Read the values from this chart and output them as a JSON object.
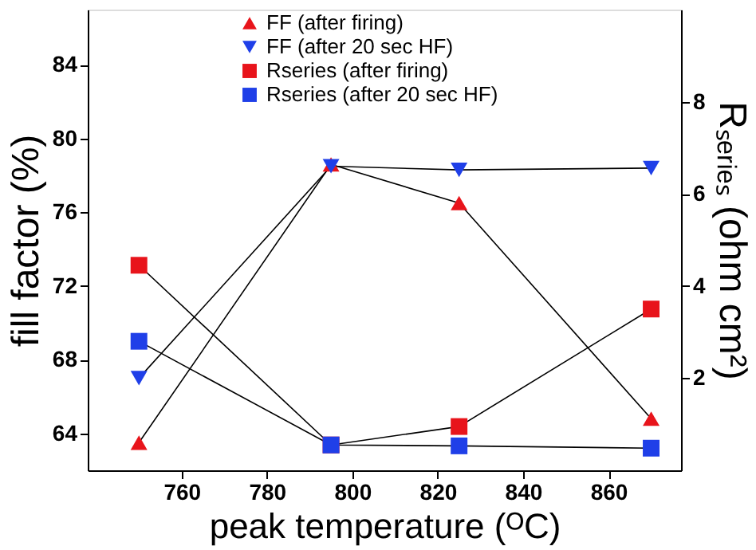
{
  "chart_data": {
    "type": "line",
    "xlabel": "peak temperature (ᴼC)",
    "ylabel": "fill factor (%)",
    "y2label": "Rₛₑᵣᵢₑₛ (ohm cm²)",
    "x": [
      750,
      795,
      825,
      870
    ],
    "series": [
      {
        "name": "FF (after firing)",
        "color": "#e8141b",
        "marker": "triangle",
        "values": [
          63.5,
          78.6,
          76.5,
          64.8
        ]
      },
      {
        "name": "FF (after 20 sec HF)",
        "color": "#1f3fe8",
        "marker": "triangle-down",
        "values": [
          67.0,
          78.5,
          78.3,
          78.4
        ]
      },
      {
        "name": "Rseries (after firing)",
        "color": "#e8141b",
        "marker": "square",
        "axis": "y2",
        "values": [
          4.45,
          0.55,
          0.95,
          3.5
        ]
      },
      {
        "name": "Rseries (after 20 sec HF)",
        "color": "#1f3fe8",
        "marker": "square",
        "axis": "y2",
        "values": [
          2.8,
          0.55,
          0.53,
          0.48
        ]
      }
    ],
    "xlim": [
      738,
      877
    ],
    "xticks": [
      760,
      780,
      800,
      820,
      840,
      860
    ],
    "ylim": [
      62,
      87
    ],
    "yticks": [
      64,
      68,
      72,
      76,
      80,
      84
    ],
    "y2lim": [
      0,
      10
    ],
    "y2ticks": [
      2,
      4,
      6,
      8
    ],
    "legend": "top",
    "grid": false
  }
}
